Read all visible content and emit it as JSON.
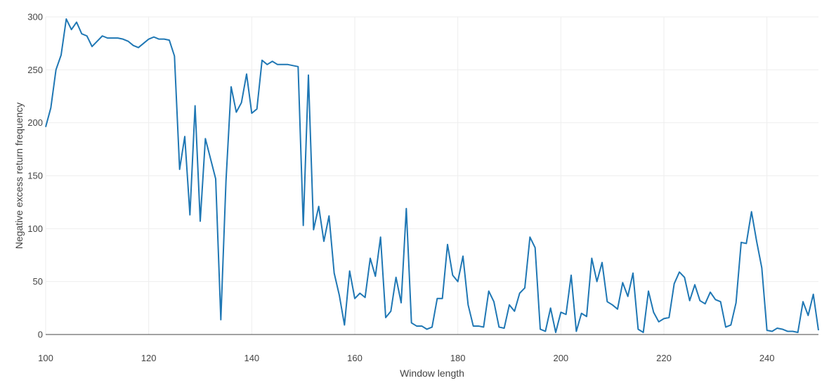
{
  "chart_data": {
    "type": "line",
    "xlabel": "Window length",
    "ylabel": "Negative excess return frequency",
    "xlim": [
      100,
      250
    ],
    "ylim": [
      0,
      300
    ],
    "x_ticks": [
      100,
      120,
      140,
      160,
      180,
      200,
      220,
      240
    ],
    "y_ticks": [
      0,
      50,
      100,
      150,
      200,
      250,
      300
    ],
    "grid": true,
    "line_color": "#1f77b4",
    "series": [
      {
        "x": [
          100,
          101,
          102,
          103,
          104,
          105,
          106,
          107,
          108,
          109,
          110,
          111,
          112,
          113,
          114,
          115,
          116,
          117,
          118,
          119,
          120,
          121,
          122,
          123,
          124,
          125,
          126,
          127,
          128,
          129,
          130,
          131,
          132,
          133,
          134,
          135,
          136,
          137,
          138,
          139,
          140,
          141,
          142,
          143,
          144,
          145,
          146,
          147,
          148,
          149,
          150,
          151,
          152,
          153,
          154,
          155,
          156,
          157,
          158,
          159,
          160,
          161,
          162,
          163,
          164,
          165,
          166,
          167,
          168,
          169,
          170,
          171,
          172,
          173,
          174,
          175,
          176,
          177,
          178,
          179,
          180,
          181,
          182,
          183,
          184,
          185,
          186,
          187,
          188,
          189,
          190,
          191,
          192,
          193,
          194,
          195,
          196,
          197,
          198,
          199,
          200,
          201,
          202,
          203,
          204,
          205,
          206,
          207,
          208,
          209,
          210,
          211,
          212,
          213,
          214,
          215,
          216,
          217,
          218,
          219,
          220,
          221,
          222,
          223,
          224,
          225,
          226,
          227,
          228,
          229,
          230,
          231,
          232,
          233,
          234,
          235,
          236,
          237,
          238,
          239,
          240,
          241,
          242,
          243,
          244,
          245,
          246,
          247,
          248,
          249,
          250
        ],
        "values": [
          196,
          214,
          250,
          264,
          298,
          288,
          295,
          284,
          282,
          272,
          277,
          282,
          280,
          280,
          280,
          279,
          277,
          273,
          271,
          275,
          279,
          281,
          279,
          279,
          278,
          263,
          156,
          187,
          113,
          216,
          107,
          185,
          166,
          147,
          14,
          145,
          234,
          210,
          219,
          246,
          209,
          213,
          259,
          255,
          258,
          255,
          255,
          255,
          254,
          253,
          103,
          245,
          99,
          121,
          88,
          112,
          58,
          37,
          9,
          60,
          34,
          39,
          35,
          72,
          55,
          92,
          16,
          22,
          54,
          30,
          119,
          11,
          8,
          8,
          5,
          7,
          34,
          34,
          85,
          56,
          50,
          74,
          28,
          8,
          8,
          7,
          41,
          31,
          7,
          6,
          28,
          22,
          39,
          44,
          92,
          82,
          5,
          3,
          25,
          2,
          21,
          19,
          56,
          3,
          20,
          17,
          72,
          50,
          68,
          31,
          28,
          24,
          49,
          36,
          58,
          5,
          2,
          41,
          21,
          12,
          15,
          16,
          48,
          59,
          54,
          32,
          47,
          32,
          29,
          40,
          33,
          31,
          7,
          9,
          30,
          87,
          86,
          116,
          88,
          63,
          4,
          3,
          6,
          5,
          3,
          3,
          2,
          31,
          18,
          38,
          4
        ]
      }
    ]
  }
}
